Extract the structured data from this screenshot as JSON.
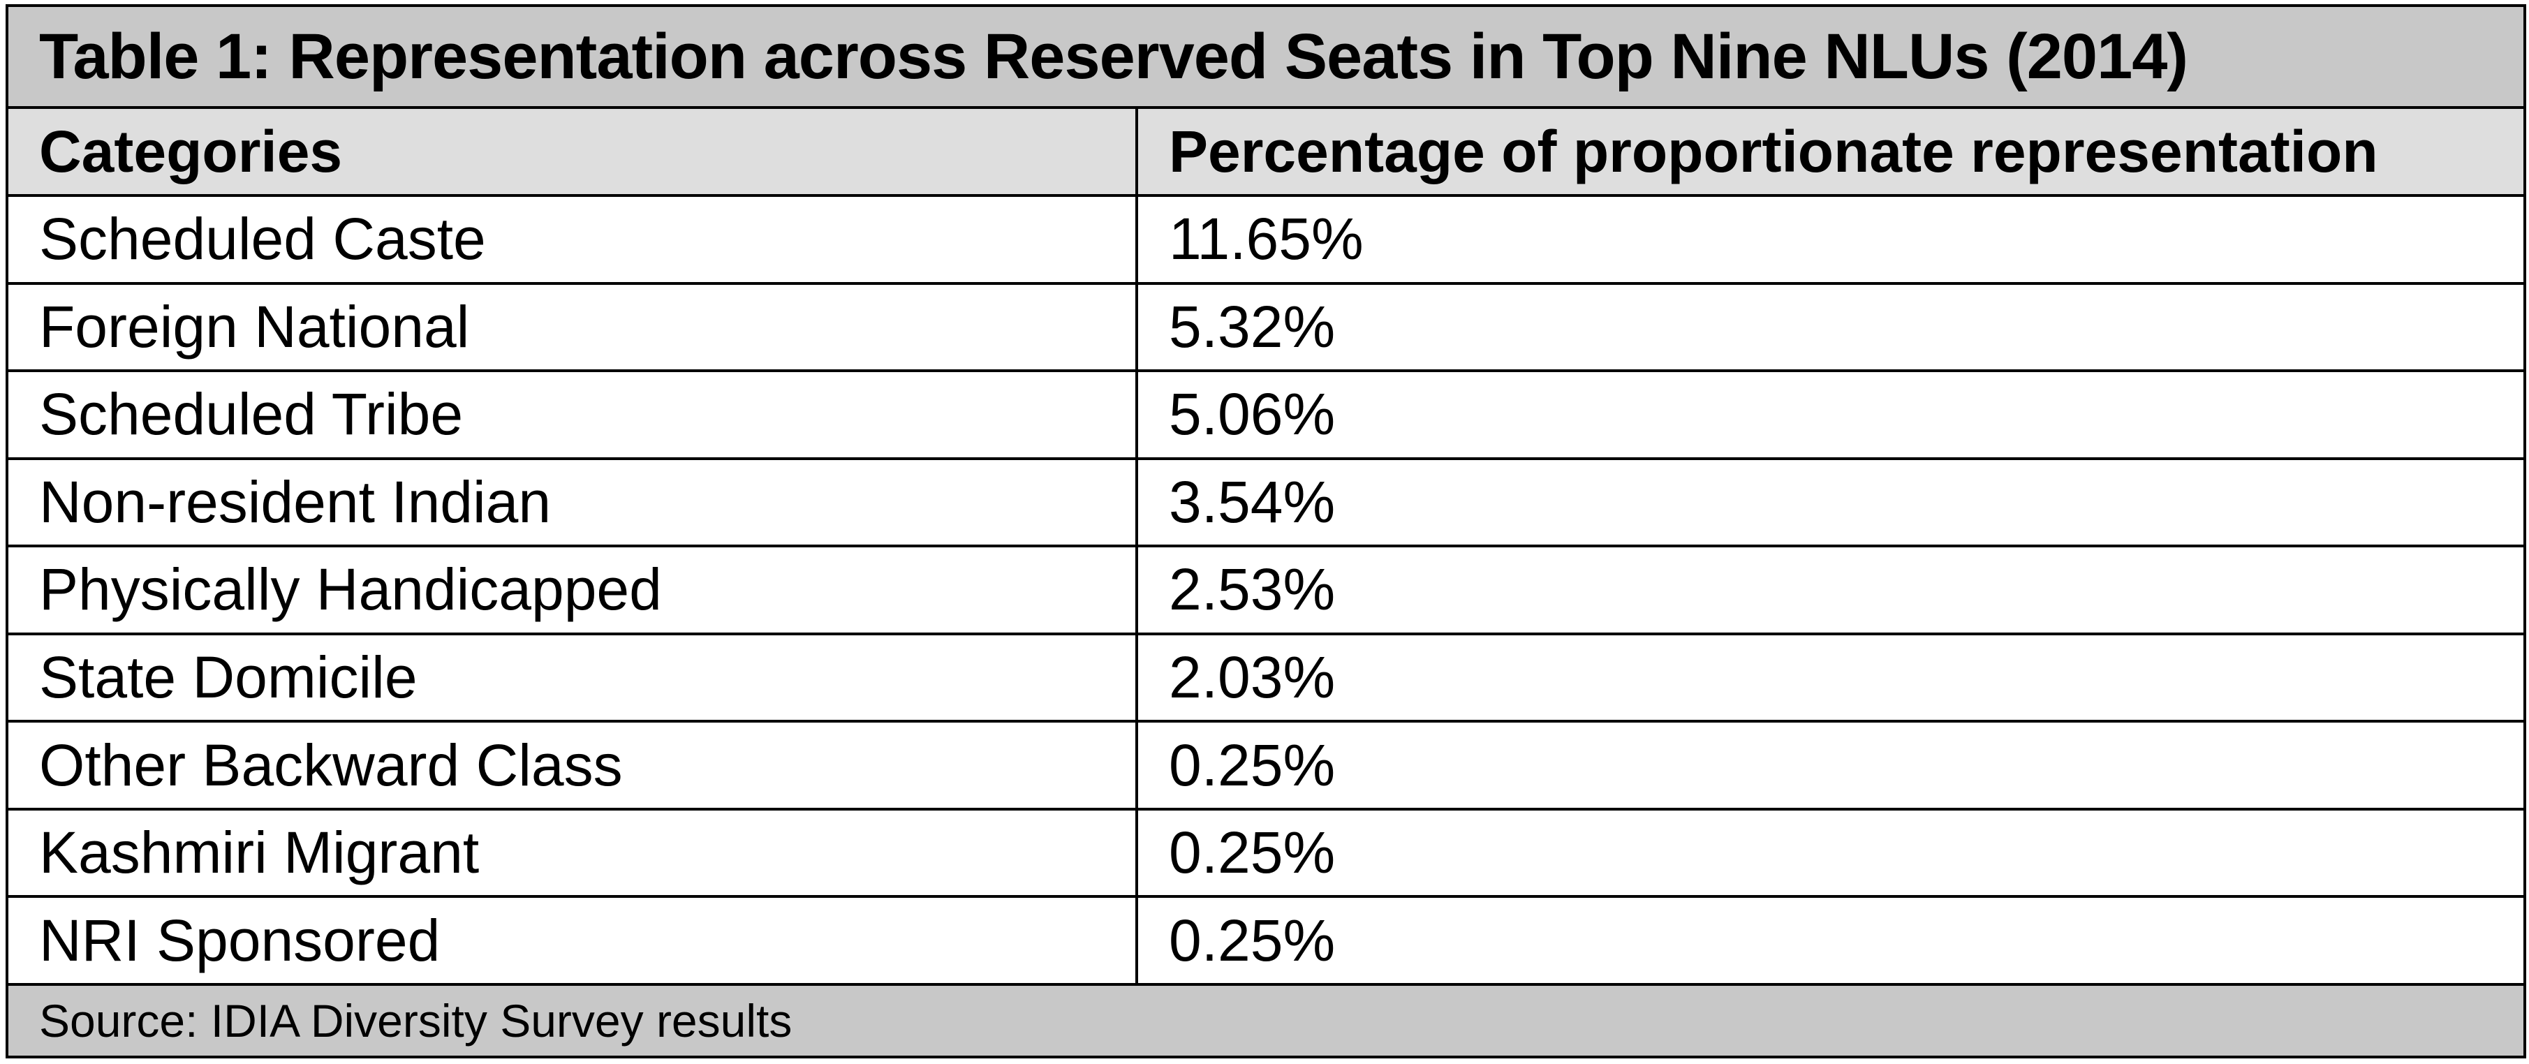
{
  "table": {
    "title": "Table 1: Representation across Reserved Seats in Top Nine NLUs (2014)",
    "columns": [
      "Categories",
      "Percentage of proportionate representation"
    ],
    "rows": [
      {
        "category": "Scheduled Caste",
        "percentage": "11.65%"
      },
      {
        "category": "Foreign National",
        "percentage": "5.32%"
      },
      {
        "category": "Scheduled Tribe",
        "percentage": "5.06%"
      },
      {
        "category": "Non-resident Indian",
        "percentage": "3.54%"
      },
      {
        "category": "Physically Handicapped",
        "percentage": "2.53%"
      },
      {
        "category": "State Domicile",
        "percentage": "2.03%"
      },
      {
        "category": "Other Backward Class",
        "percentage": "0.25%"
      },
      {
        "category": "Kashmiri Migrant",
        "percentage": "0.25%"
      },
      {
        "category": "NRI Sponsored",
        "percentage": "0.25%"
      }
    ],
    "source": "Source: IDIA Diversity Survey results"
  },
  "colors": {
    "title_background": "#c8c8c8",
    "header_background": "#dedede",
    "source_background": "#c8c8c8",
    "border": "#000000"
  }
}
